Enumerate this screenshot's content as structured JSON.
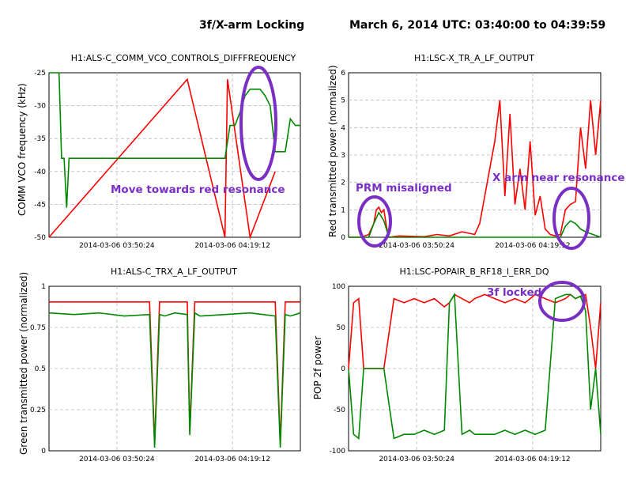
{
  "header": {
    "title": "3f/X-arm Locking",
    "date_range": "March 6, 2014 UTC: 03:40:00 to 04:39:59"
  },
  "colors": {
    "red": "#ff0000",
    "green": "#008800",
    "annotation": "#7a2fc4"
  },
  "chart_data": [
    {
      "type": "line",
      "title": "H1:ALS-C_COMM_VCO_CONTROLS_DIFFFREQUENCY",
      "ylabel": "COMM VCO frequency (kHz)",
      "xlabel": "",
      "ylim": [
        -50,
        -25
      ],
      "yticks": [
        "-25",
        "-30",
        "-35",
        "-40",
        "-45",
        "-50"
      ],
      "xticks": [
        "2014-03-06 03:50:24",
        "2014-03-06 04:19:12"
      ],
      "grid": true,
      "annotation": "Move towards red resonance",
      "series": [
        {
          "color": "red",
          "points": [
            [
              0.0,
              -50
            ],
            [
              0.55,
              -26
            ],
            [
              0.7,
              -50
            ],
            [
              0.71,
              -26
            ],
            [
              0.8,
              -50
            ],
            [
              0.9,
              -40
            ]
          ]
        },
        {
          "color": "green",
          "x": [
            0.0,
            0.04,
            0.05,
            0.06,
            0.07,
            0.08,
            0.1,
            0.12,
            0.14,
            0.16,
            0.18,
            0.2,
            0.22,
            0.24,
            0.26,
            0.28,
            0.3,
            0.32,
            0.34,
            0.36,
            0.38,
            0.4,
            0.42,
            0.44,
            0.45,
            0.46,
            0.47,
            0.48,
            0.5,
            0.52,
            0.54,
            0.55,
            0.6,
            0.62,
            0.63,
            0.65,
            0.68,
            0.7,
            0.72,
            0.74,
            0.76,
            0.78,
            0.8,
            0.82,
            0.84,
            0.86,
            0.88,
            0.9,
            0.92,
            0.94,
            0.96,
            0.98,
            1.0
          ],
          "y": [
            -25,
            -25,
            -38,
            -38,
            -45.5,
            -38,
            -38,
            -38,
            -38,
            -38,
            -38,
            -38,
            -38,
            -38,
            -38,
            -38,
            -38,
            -38,
            -38,
            -38,
            -38,
            -38,
            -38,
            -38,
            -38,
            -38,
            -38,
            -38,
            -38,
            -38,
            -38,
            -38,
            -38,
            -38,
            -38,
            -38,
            -38,
            -38,
            -33,
            -33,
            -31,
            -28.5,
            -27.5,
            -27.5,
            -27.5,
            -28.5,
            -30,
            -37,
            -37,
            -37,
            -32,
            -33,
            -33
          ]
        }
      ]
    },
    {
      "type": "line",
      "title": "H1:LSC-X_TR_A_LF_OUTPUT",
      "ylabel": "Red transmitted power (normalized)",
      "xlabel": "",
      "ylim": [
        0,
        6
      ],
      "yticks": [
        "6",
        "5",
        "4",
        "3",
        "2",
        "1",
        "0"
      ],
      "xticks": [
        "2014-03-06 03:50:24",
        "2014-03-06 04:19:12"
      ],
      "grid": true,
      "annotations": [
        "PRM misaligned",
        "X arm near resonance"
      ],
      "series": [
        {
          "color": "red",
          "x": [
            0.0,
            0.05,
            0.08,
            0.1,
            0.11,
            0.12,
            0.13,
            0.14,
            0.15,
            0.16,
            0.2,
            0.3,
            0.35,
            0.4,
            0.45,
            0.5,
            0.52,
            0.54,
            0.56,
            0.58,
            0.6,
            0.62,
            0.64,
            0.66,
            0.68,
            0.7,
            0.72,
            0.74,
            0.76,
            0.78,
            0.8,
            0.82,
            0.84,
            0.86,
            0.88,
            0.9,
            0.92,
            0.94,
            0.96,
            0.98,
            1.0
          ],
          "y": [
            0,
            0,
            0.1,
            0.5,
            1.0,
            1.1,
            0.9,
            1.0,
            0.4,
            0,
            0.05,
            0.02,
            0.1,
            0.05,
            0.2,
            0.1,
            0.5,
            1.5,
            2.5,
            3.5,
            5.0,
            1.5,
            4.5,
            1.2,
            2.5,
            1.0,
            3.5,
            0.8,
            1.5,
            0.3,
            0.1,
            0.05,
            0.1,
            1.0,
            1.2,
            1.3,
            4.0,
            2.5,
            5.0,
            3.0,
            5.0
          ]
        },
        {
          "color": "green",
          "x": [
            0.0,
            0.08,
            0.1,
            0.12,
            0.14,
            0.16,
            0.2,
            0.84,
            0.86,
            0.88,
            0.9,
            0.92,
            0.94,
            1.0
          ],
          "y": [
            0,
            0,
            0.5,
            0.9,
            0.6,
            0,
            0,
            0,
            0.4,
            0.6,
            0.5,
            0.3,
            0.2,
            0
          ]
        }
      ]
    },
    {
      "type": "line",
      "title": "H1:ALS-C_TRX_A_LF_OUTPUT",
      "ylabel": "Green transmitted power (normalized)",
      "xlabel": "",
      "ylim": [
        0,
        1.05
      ],
      "yticks": [
        "1",
        "0.75",
        "0.5",
        "0.25",
        "0"
      ],
      "xticks": [
        "2014-03-06 03:50:24",
        "2014-03-06 04:19:12"
      ],
      "grid": true,
      "series": [
        {
          "color": "red",
          "x": [
            0.0,
            0.1,
            0.2,
            0.3,
            0.4,
            0.42,
            0.44,
            0.46,
            0.5,
            0.55,
            0.56,
            0.58,
            0.6,
            0.7,
            0.8,
            0.9,
            0.92,
            0.94,
            0.96,
            1.0
          ],
          "y": [
            0.95,
            0.95,
            0.95,
            0.95,
            0.95,
            0.05,
            0.95,
            0.95,
            0.95,
            0.95,
            0.12,
            0.95,
            0.95,
            0.95,
            0.95,
            0.95,
            0.05,
            0.95,
            0.95,
            0.95
          ]
        },
        {
          "color": "green",
          "x": [
            0.0,
            0.1,
            0.2,
            0.3,
            0.4,
            0.42,
            0.44,
            0.46,
            0.5,
            0.55,
            0.56,
            0.58,
            0.6,
            0.7,
            0.8,
            0.9,
            0.92,
            0.94,
            0.96,
            1.0
          ],
          "y": [
            0.88,
            0.87,
            0.88,
            0.86,
            0.87,
            0.02,
            0.87,
            0.86,
            0.88,
            0.87,
            0.1,
            0.88,
            0.86,
            0.87,
            0.88,
            0.86,
            0.02,
            0.87,
            0.86,
            0.88
          ]
        }
      ]
    },
    {
      "type": "line",
      "title": "H1:LSC-POPAIR_B_RF18_I_ERR_DQ",
      "ylabel": "POP 2f power",
      "xlabel": "",
      "ylim": [
        -100,
        100
      ],
      "yticks": [
        "100",
        "50",
        "0",
        "-50",
        "-100"
      ],
      "xticks": [
        "2014-03-06 03:50:24",
        "2014-03-06 04:19:12"
      ],
      "grid": true,
      "annotation": "3f locked",
      "series": [
        {
          "color": "red",
          "x": [
            0.0,
            0.02,
            0.04,
            0.06,
            0.08,
            0.14,
            0.18,
            0.22,
            0.26,
            0.3,
            0.34,
            0.38,
            0.4,
            0.42,
            0.45,
            0.48,
            0.5,
            0.54,
            0.58,
            0.62,
            0.66,
            0.7,
            0.74,
            0.78,
            0.82,
            0.86,
            0.88,
            0.9,
            0.92,
            0.94,
            0.96,
            0.98,
            1.0
          ],
          "y": [
            0,
            80,
            85,
            0,
            0,
            0,
            85,
            80,
            85,
            80,
            85,
            75,
            80,
            90,
            85,
            80,
            85,
            90,
            85,
            80,
            85,
            80,
            90,
            85,
            80,
            85,
            90,
            85,
            88,
            90,
            50,
            0,
            80
          ]
        },
        {
          "color": "green",
          "x": [
            0.0,
            0.02,
            0.04,
            0.06,
            0.08,
            0.14,
            0.18,
            0.22,
            0.26,
            0.3,
            0.34,
            0.38,
            0.4,
            0.42,
            0.45,
            0.48,
            0.5,
            0.54,
            0.58,
            0.62,
            0.66,
            0.7,
            0.74,
            0.78,
            0.82,
            0.86,
            0.88,
            0.9,
            0.92,
            0.94,
            0.96,
            0.98,
            1.0
          ],
          "y": [
            0,
            -80,
            -85,
            0,
            0,
            0,
            -85,
            -80,
            -80,
            -75,
            -80,
            -75,
            80,
            90,
            -80,
            -75,
            -80,
            -80,
            -80,
            -75,
            -80,
            -75,
            -80,
            -75,
            85,
            90,
            90,
            85,
            88,
            70,
            -50,
            0,
            -80
          ]
        }
      ]
    }
  ]
}
